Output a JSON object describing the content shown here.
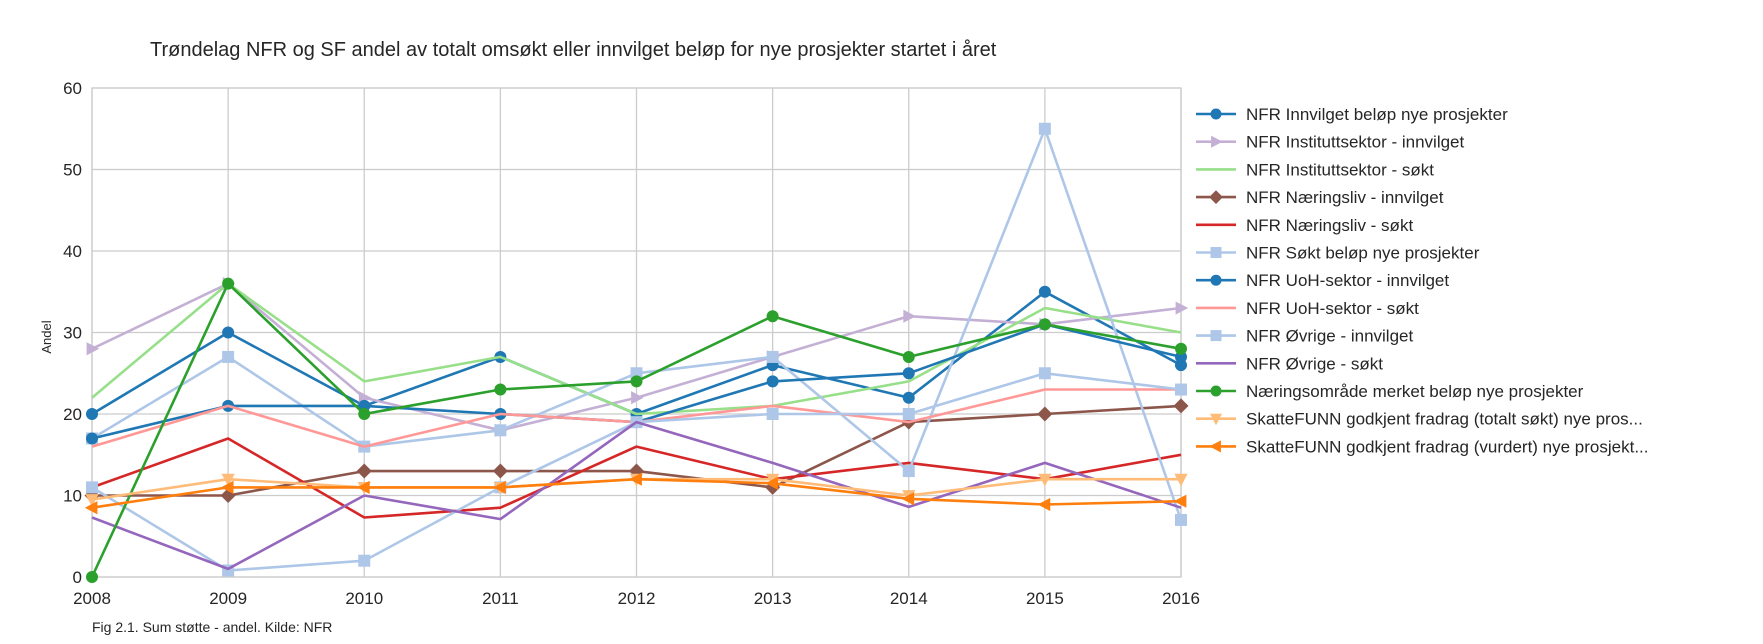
{
  "chart_data": {
    "type": "line",
    "title": "Trøndelag NFR og SF andel av totalt omsøkt eller innvilget beløp for nye prosjekter startet i året",
    "xlabel": "",
    "ylabel": "Andel",
    "caption": "Fig 2.1. Sum støtte - andel. Kilde: NFR",
    "x": [
      2008,
      2009,
      2010,
      2011,
      2012,
      2013,
      2014,
      2015,
      2016
    ],
    "xlim": [
      2008,
      2016
    ],
    "ylim": [
      0,
      60
    ],
    "yticks": [
      0,
      10,
      20,
      30,
      40,
      50,
      60
    ],
    "grid": true,
    "legend_position": "right",
    "series": [
      {
        "name": "NFR Innvilget beløp nye prosjekter",
        "color": "#1f77b4",
        "marker": "circle",
        "values": [
          20,
          30,
          21,
          27,
          20,
          26,
          22,
          35,
          26
        ]
      },
      {
        "name": "NFR Instituttsektor - innvilget",
        "color": "#c5b0d5",
        "marker": "triangle-right",
        "values": [
          28,
          36,
          22,
          18,
          22,
          27,
          32,
          31,
          33
        ]
      },
      {
        "name": "NFR Instituttsektor - søkt",
        "color": "#98df8a",
        "marker": "none",
        "values": [
          22,
          36,
          24,
          27,
          20,
          21,
          24,
          33,
          30
        ]
      },
      {
        "name": "NFR Næringsliv - innvilget",
        "color": "#8c564b",
        "marker": "diamond",
        "values": [
          10,
          10,
          13,
          13,
          13,
          11,
          19,
          20,
          21
        ]
      },
      {
        "name": "NFR Næringsliv - søkt",
        "color": "#d62728",
        "marker": "none",
        "values": [
          11,
          17,
          7.3,
          8.5,
          16,
          12,
          14,
          12,
          15
        ]
      },
      {
        "name": "NFR Søkt beløp nye prosjekter",
        "color": "#aec7e8",
        "marker": "square",
        "values": [
          17,
          27,
          16,
          18,
          25,
          27,
          13,
          55,
          7
        ]
      },
      {
        "name": "NFR UoH-sektor - innvilget",
        "color": "#1f77b4",
        "marker": "circle",
        "values": [
          17,
          21,
          21,
          20,
          19,
          24,
          25,
          31,
          27
        ]
      },
      {
        "name": "NFR UoH-sektor - søkt",
        "color": "#ff9896",
        "marker": "none",
        "values": [
          16,
          21,
          16,
          20,
          19,
          21,
          19,
          23,
          23
        ]
      },
      {
        "name": "NFR Øvrige - innvilget",
        "color": "#aec7e8",
        "marker": "square",
        "values": [
          11,
          0.8,
          2,
          11,
          19,
          20,
          20,
          25,
          23
        ]
      },
      {
        "name": "NFR Øvrige - søkt",
        "color": "#9467bd",
        "marker": "none",
        "values": [
          7.3,
          1,
          10,
          7.1,
          19,
          14,
          8.6,
          14,
          8.5
        ]
      },
      {
        "name": "Næringsområde merket beløp nye prosjekter",
        "color": "#2ca02c",
        "marker": "circle",
        "values": [
          0,
          36,
          20,
          23,
          24,
          32,
          27,
          31,
          28
        ]
      },
      {
        "name": "SkatteFUNN godkjent fradrag (totalt søkt) nye pros...",
        "color": "#ffbb78",
        "marker": "triangle-down",
        "values": [
          9.5,
          12,
          11,
          11,
          12,
          12,
          10,
          12,
          12
        ]
      },
      {
        "name": "SkatteFUNN godkjent fradrag (vurdert) nye prosjekt...",
        "color": "#ff7f0e",
        "marker": "triangle-left",
        "values": [
          8.5,
          11,
          11,
          11,
          12,
          11.5,
          9.6,
          8.9,
          9.3
        ]
      }
    ]
  }
}
